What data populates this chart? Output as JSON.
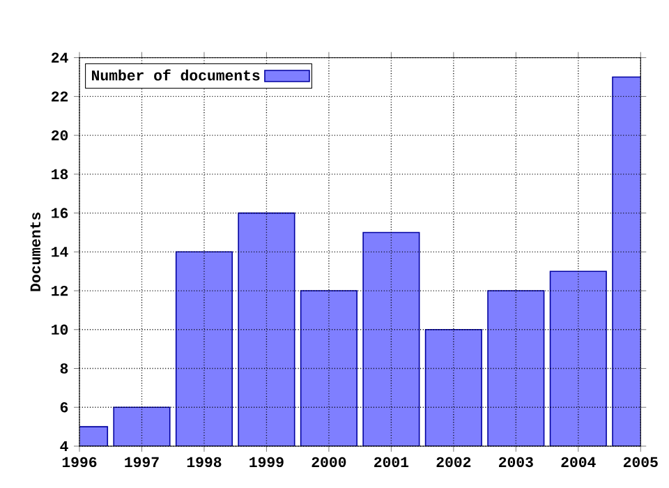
{
  "chart_data": {
    "type": "bar",
    "ylabel": "Documents",
    "x": [
      1996,
      1997,
      1998,
      1999,
      2000,
      2001,
      2002,
      2003,
      2004,
      2005
    ],
    "series": [
      {
        "name": "Number of documents",
        "color": "#7f7fff",
        "values": [
          5,
          6,
          14,
          16,
          12,
          15,
          10,
          12,
          13,
          23
        ]
      }
    ],
    "xlim": [
      1996,
      2005
    ],
    "xticks": [
      1996,
      1997,
      1998,
      1999,
      2000,
      2001,
      2002,
      2003,
      2004,
      2005
    ],
    "ylim": [
      4,
      24
    ],
    "yticks": [
      4,
      6,
      8,
      10,
      12,
      14,
      16,
      18,
      20,
      22,
      24
    ],
    "grid": true,
    "legend": "top left"
  }
}
